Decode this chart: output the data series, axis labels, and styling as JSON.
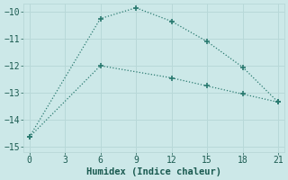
{
  "xlabel": "Humidex (Indice chaleur)",
  "background_color": "#cce8e8",
  "line_color": "#2a7a70",
  "line1_x": [
    0,
    6,
    9,
    12,
    15,
    18,
    21
  ],
  "line1_y": [
    -14.65,
    -10.25,
    -9.85,
    -10.35,
    -11.1,
    -12.05,
    -13.35
  ],
  "line2_x": [
    0,
    6,
    12,
    15,
    18,
    21
  ],
  "line2_y": [
    -14.65,
    -12.0,
    -12.45,
    -12.75,
    -13.05,
    -13.35
  ],
  "xlim": [
    -0.5,
    21.5
  ],
  "ylim": [
    -15.2,
    -9.7
  ],
  "xticks": [
    0,
    3,
    6,
    9,
    12,
    15,
    18,
    21
  ],
  "yticks": [
    -15,
    -14,
    -13,
    -12,
    -11,
    -10
  ],
  "grid_color": "#b8d8d8",
  "font_family": "monospace",
  "tick_color": "#1a5a50",
  "label_color": "#1a5a50"
}
